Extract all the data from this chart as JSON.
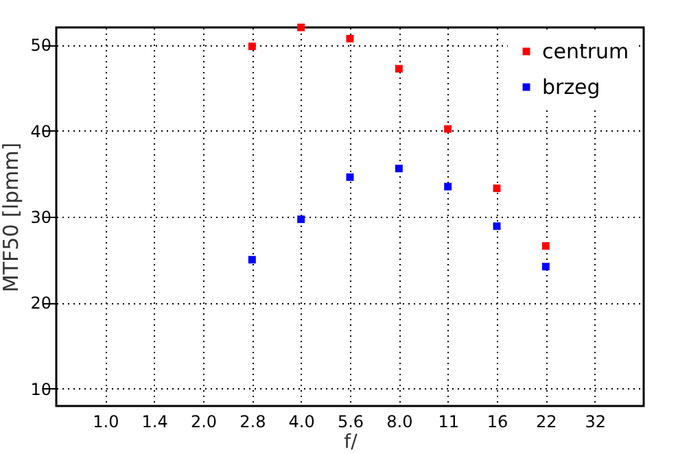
{
  "chart_data": {
    "type": "scatter",
    "xlabel": "f/",
    "ylabel": "MTF50 [lpmm]",
    "categories": [
      "1.0",
      "1.4",
      "2.0",
      "2.8",
      "4.0",
      "5.6",
      "8.0",
      "11",
      "16",
      "22",
      "32"
    ],
    "series": [
      {
        "name": "centrum",
        "color": "#ff0000",
        "values": [
          null,
          null,
          null,
          49.8,
          52.0,
          50.7,
          47.2,
          40.2,
          33.3,
          26.6,
          null
        ]
      },
      {
        "name": "brzeg",
        "color": "#0000ff",
        "values": [
          null,
          null,
          null,
          25.0,
          29.7,
          34.6,
          35.6,
          33.5,
          28.9,
          24.2,
          null
        ]
      }
    ],
    "ylim": [
      8,
      52
    ],
    "yticks": [
      10,
      20,
      30,
      40,
      50
    ],
    "grid": true,
    "legend": "top right",
    "marker": "square"
  }
}
